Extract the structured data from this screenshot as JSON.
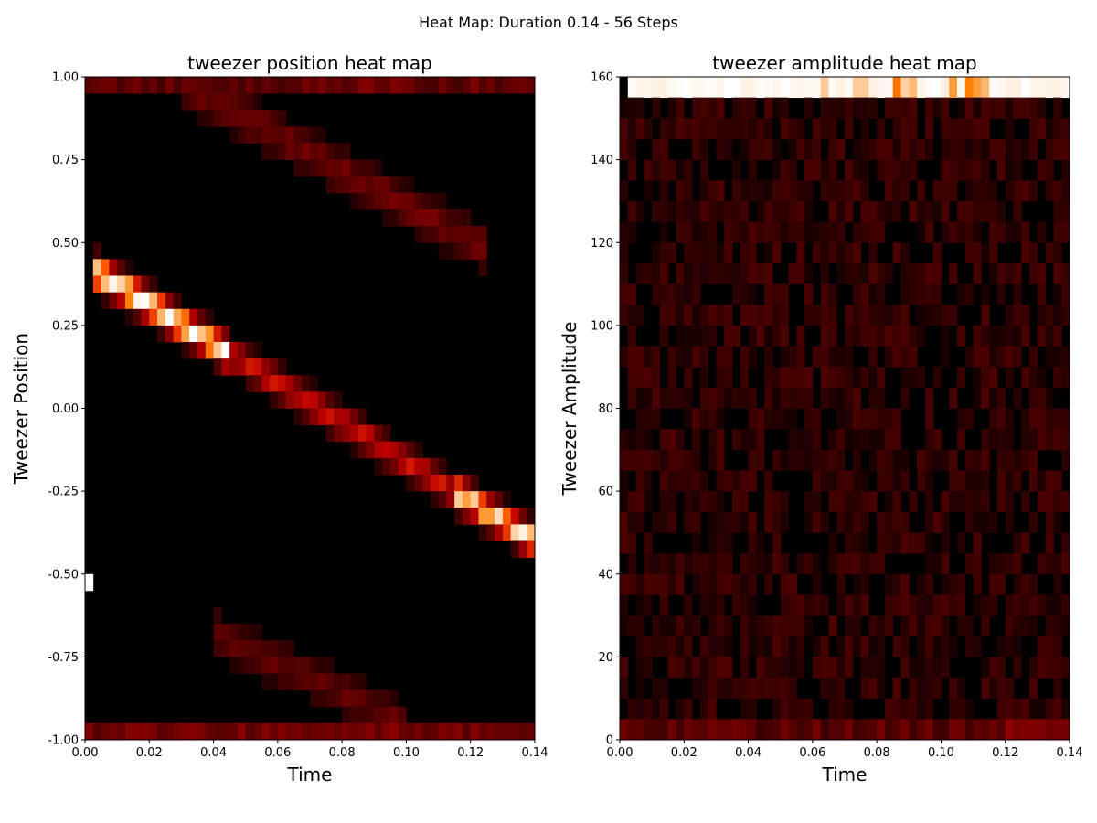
{
  "figure": {
    "title": "Heat Map: Duration 0.14 - 56 Steps"
  },
  "chart_data": [
    {
      "type": "heatmap",
      "title": "tweezer position heat map",
      "xlabel": "Time",
      "ylabel": "Tweezer Position",
      "xlim": [
        0.0,
        0.14
      ],
      "ylim": [
        -1.0,
        1.0
      ],
      "x_ticks": [
        "0.00",
        "0.02",
        "0.04",
        "0.06",
        "0.08",
        "0.10",
        "0.12",
        "0.14"
      ],
      "y_ticks": [
        "-1.00",
        "-0.75",
        "-0.50",
        "-0.25",
        "0.00",
        "0.25",
        "0.50",
        "0.75",
        "1.00"
      ],
      "colormap": "gist_heat",
      "time_steps": 56,
      "position_bins": 40,
      "features": {
        "main_band": {
          "start": [
            0.002,
            0.42
          ],
          "end": [
            0.14,
            -0.4
          ]
        },
        "upper_band": {
          "start": [
            0.03,
            0.98
          ],
          "end": [
            0.125,
            0.48
          ]
        },
        "lower_band": {
          "start": [
            0.04,
            -0.68
          ],
          "end": [
            0.1,
            -0.95
          ]
        },
        "top_row": {
          "y": 0.975
        },
        "bottom_row": {
          "y": -0.975
        },
        "isolated_hot": {
          "x": 0.001,
          "y": -0.525
        }
      }
    },
    {
      "type": "heatmap",
      "title": "tweezer amplitude heat map",
      "xlabel": "Time",
      "ylabel": "Tweezer Amplitude",
      "xlim": [
        0.0,
        0.14
      ],
      "ylim": [
        0,
        160
      ],
      "x_ticks": [
        "0.00",
        "0.02",
        "0.04",
        "0.06",
        "0.08",
        "0.10",
        "0.12",
        "0.14"
      ],
      "y_ticks": [
        "0",
        "20",
        "40",
        "60",
        "80",
        "100",
        "120",
        "140",
        "160"
      ],
      "colormap": "gist_heat",
      "time_steps": 56,
      "amplitude_bins": 32,
      "features": {
        "top_row": {
          "y_range": [
            155,
            160
          ]
        },
        "bottom_row": {
          "y_range": [
            0,
            5
          ]
        }
      }
    }
  ]
}
